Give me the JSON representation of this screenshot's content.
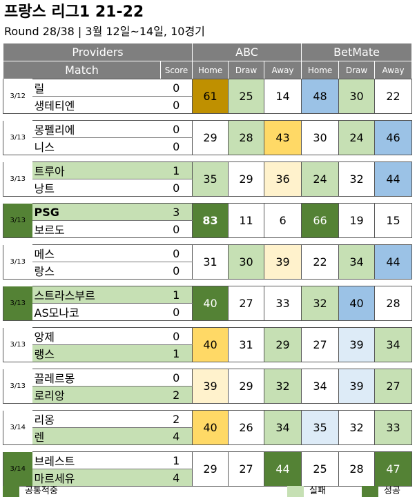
{
  "title": "프랑스 리그1 21-22",
  "subtitle": "Round 28/38  | 3월 12일~14일, 10경기",
  "header": {
    "providers": "Providers",
    "match": "Match",
    "score": "Score",
    "abc": "ABC",
    "betmate": "BetMate",
    "home": "Home",
    "draw": "Draw",
    "away": "Away"
  },
  "colors": {
    "green_light": "#c6e0b4",
    "green_dark": "#548235",
    "gold_dark": "#bf9000",
    "gold": "#ffd966",
    "gold_light": "#fff2cc",
    "blue": "#9bc2e6",
    "blue_light": "#ddebf7",
    "header_gray": "#7f7f7f"
  },
  "matches": [
    {
      "date": "3/12",
      "date_bg": "",
      "home": "릴",
      "away": "생테티엔",
      "home_bg": "",
      "away_bg": "",
      "home_bold": false,
      "away_bold": false,
      "hs": "0",
      "as": "0",
      "abc": [
        "61",
        "25",
        "14"
      ],
      "abc_bg": [
        "#bf9000",
        "#c6e0b4",
        ""
      ],
      "bm": [
        "48",
        "30",
        "22"
      ],
      "bm_bg": [
        "#9bc2e6",
        "#c6e0b4",
        ""
      ]
    },
    {
      "date": "3/13",
      "date_bg": "",
      "home": "몽펠리에",
      "away": "니스",
      "home_bg": "",
      "away_bg": "",
      "home_bold": false,
      "away_bold": false,
      "hs": "0",
      "as": "0",
      "abc": [
        "29",
        "28",
        "43"
      ],
      "abc_bg": [
        "",
        "#c6e0b4",
        "#ffd966"
      ],
      "bm": [
        "30",
        "24",
        "46"
      ],
      "bm_bg": [
        "",
        "#c6e0b4",
        "#9bc2e6"
      ]
    },
    {
      "date": "3/13",
      "date_bg": "",
      "home": "트루아",
      "away": "낭트",
      "home_bg": "#c6e0b4",
      "away_bg": "",
      "home_bold": false,
      "away_bold": false,
      "hs": "1",
      "as": "0",
      "abc": [
        "35",
        "29",
        "36"
      ],
      "abc_bg": [
        "#c6e0b4",
        "",
        "#fff2cc"
      ],
      "bm": [
        "24",
        "32",
        "44"
      ],
      "bm_bg": [
        "#c6e0b4",
        "",
        "#9bc2e6"
      ]
    },
    {
      "date": "3/13",
      "date_bg": "#548235",
      "home": "PSG",
      "away": "보르도",
      "home_bg": "#c6e0b4",
      "away_bg": "",
      "home_bold": true,
      "away_bold": false,
      "hs": "3",
      "as": "0",
      "abc": [
        "83",
        "11",
        "6"
      ],
      "abc_bg": [
        "#548235",
        "",
        ""
      ],
      "bm": [
        "66",
        "19",
        "15"
      ],
      "bm_bg": [
        "#548235",
        "",
        ""
      ]
    },
    {
      "date": "3/13",
      "date_bg": "",
      "home": "메스",
      "away": "랑스",
      "home_bg": "",
      "away_bg": "",
      "home_bold": false,
      "away_bold": false,
      "hs": "0",
      "as": "0",
      "abc": [
        "31",
        "30",
        "39"
      ],
      "abc_bg": [
        "",
        "#c6e0b4",
        "#fff2cc"
      ],
      "bm": [
        "22",
        "34",
        "44"
      ],
      "bm_bg": [
        "",
        "#c6e0b4",
        "#9bc2e6"
      ]
    },
    {
      "date": "3/13",
      "date_bg": "#548235",
      "home": "스트라스부르",
      "away": "AS모나코",
      "home_bg": "#c6e0b4",
      "away_bg": "",
      "home_bold": false,
      "away_bold": false,
      "hs": "1",
      "as": "0",
      "abc": [
        "40",
        "27",
        "33"
      ],
      "abc_bg": [
        "#548235",
        "",
        ""
      ],
      "bm": [
        "32",
        "40",
        "28"
      ],
      "bm_bg": [
        "#c6e0b4",
        "#9bc2e6",
        ""
      ]
    },
    {
      "date": "3/13",
      "date_bg": "",
      "home": "앙제",
      "away": "랭스",
      "home_bg": "",
      "away_bg": "#c6e0b4",
      "home_bold": false,
      "away_bold": false,
      "hs": "0",
      "as": "1",
      "abc": [
        "40",
        "31",
        "29"
      ],
      "abc_bg": [
        "#ffd966",
        "",
        "#c6e0b4"
      ],
      "bm": [
        "27",
        "39",
        "34"
      ],
      "bm_bg": [
        "",
        "#ddebf7",
        "#c6e0b4"
      ]
    },
    {
      "date": "3/13",
      "date_bg": "",
      "home": "끌레르몽",
      "away": "로리앙",
      "home_bg": "",
      "away_bg": "#c6e0b4",
      "home_bold": false,
      "away_bold": false,
      "hs": "0",
      "as": "2",
      "abc": [
        "39",
        "29",
        "32"
      ],
      "abc_bg": [
        "#fff2cc",
        "",
        "#c6e0b4"
      ],
      "bm": [
        "34",
        "39",
        "27"
      ],
      "bm_bg": [
        "",
        "#ddebf7",
        "#c6e0b4"
      ]
    },
    {
      "date": "3/14",
      "date_bg": "",
      "home": "리옹",
      "away": "렌",
      "home_bg": "",
      "away_bg": "#c6e0b4",
      "home_bold": false,
      "away_bold": false,
      "hs": "2",
      "as": "4",
      "abc": [
        "40",
        "26",
        "34"
      ],
      "abc_bg": [
        "#ffd966",
        "",
        "#c6e0b4"
      ],
      "bm": [
        "35",
        "32",
        "33"
      ],
      "bm_bg": [
        "#ddebf7",
        "",
        "#c6e0b4"
      ]
    },
    {
      "date": "3/14",
      "date_bg": "#548235",
      "home": "브레스트",
      "away": "마르세유",
      "home_bg": "",
      "away_bg": "#c6e0b4",
      "home_bold": false,
      "away_bold": false,
      "hs": "1",
      "as": "4",
      "abc": [
        "29",
        "27",
        "44"
      ],
      "abc_bg": [
        "",
        "",
        "#548235"
      ],
      "bm": [
        "25",
        "28",
        "47"
      ],
      "bm_bg": [
        "",
        "",
        "#548235"
      ]
    }
  ],
  "legend": {
    "common": "공통적중",
    "common_color": "#548235",
    "fail": "실패",
    "fail_color": "#c6e0b4",
    "success": "성공",
    "success_color": "#548235"
  }
}
